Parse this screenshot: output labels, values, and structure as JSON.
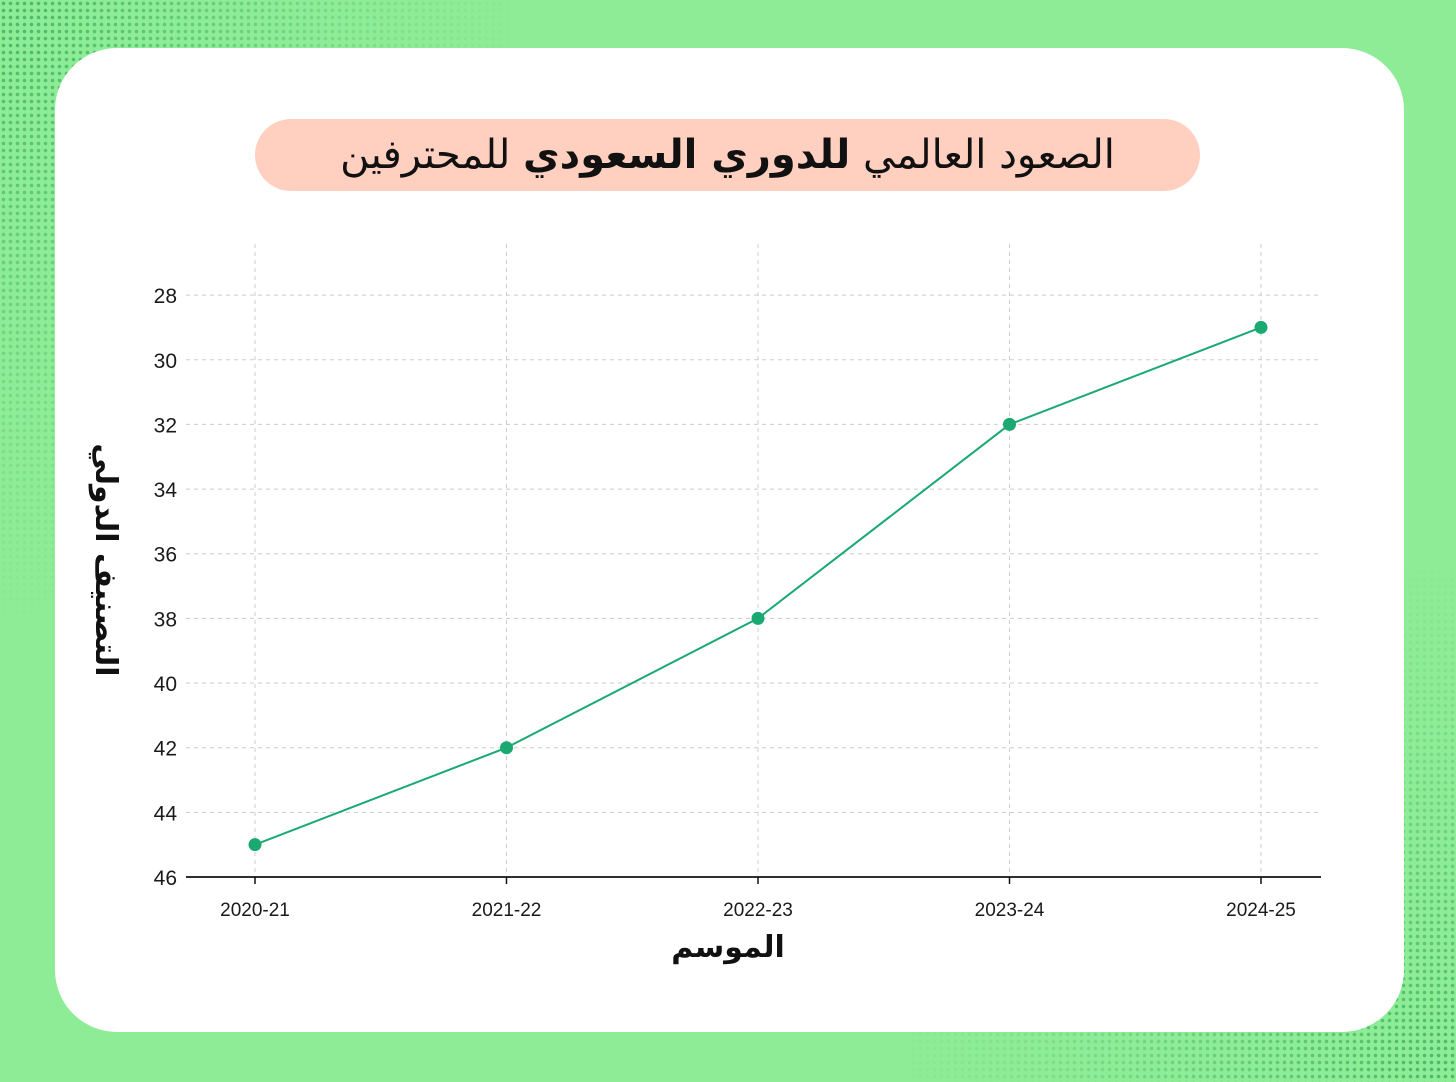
{
  "title": {
    "part1": "الصعود العالمي",
    "part2": "للدوري السعودي",
    "part3": "للمحترفين"
  },
  "colors": {
    "background": "#8eec96",
    "card": "#ffffff",
    "title_pill": "#ffcfc0",
    "line": "#1aa971",
    "grid": "#cccccc"
  },
  "chart_data": {
    "type": "line",
    "x": [
      "2020-21",
      "2021-22",
      "2022-23",
      "2023-24",
      "2024-25"
    ],
    "values": [
      45,
      42,
      38,
      32,
      29
    ],
    "xlabel": "الموسم",
    "ylabel": "التصنيف الدولي",
    "ylim": [
      46,
      27.1
    ],
    "y_inverted": true,
    "yticks": [
      "28",
      "30",
      "32",
      "34",
      "36",
      "38",
      "40",
      "42",
      "44",
      "46"
    ],
    "grid": true
  }
}
